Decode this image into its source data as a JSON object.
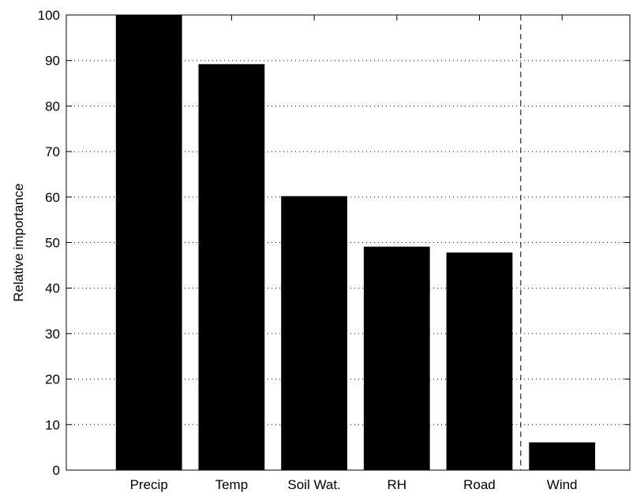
{
  "chart_data": {
    "type": "bar",
    "categories": [
      "Precip",
      "Temp",
      "Soil Wat.",
      "RH",
      "Road",
      "Wind"
    ],
    "values": [
      100,
      89.2,
      60.2,
      49.1,
      47.8,
      6.1
    ],
    "xlabel": "",
    "ylabel": "Relative importance",
    "ylim": [
      0,
      100
    ],
    "yticks": [
      0,
      10,
      20,
      30,
      40,
      50,
      60,
      70,
      80,
      90,
      100
    ],
    "grid": "horizontal dotted",
    "bar_color": "#000000",
    "separator": {
      "type": "vertical dashed line",
      "between": [
        "Road",
        "Wind"
      ]
    }
  }
}
